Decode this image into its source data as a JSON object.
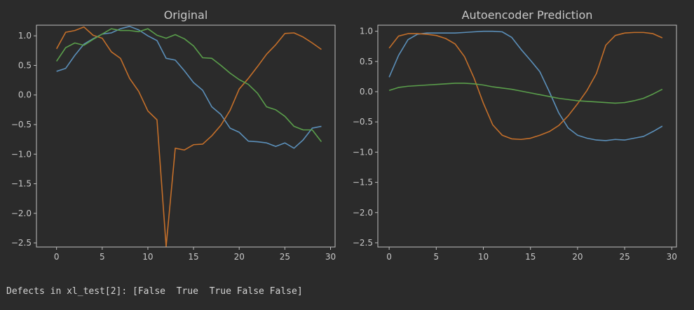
{
  "colors": {
    "background": "#2b2b2b",
    "axis": "#bfbfbf",
    "text": "#c8c8c8",
    "series": [
      "#5b8fb9",
      "#c46f2a",
      "#5a9e4b"
    ]
  },
  "chart_data": [
    {
      "type": "line",
      "title": "Original",
      "xlabel": "",
      "ylabel": "",
      "xlim": [
        -2.2,
        30.5
      ],
      "ylim": [
        -2.57,
        1.18
      ],
      "xticks": [
        0,
        5,
        10,
        15,
        20,
        25,
        30
      ],
      "yticks": [
        1.0,
        0.5,
        0.0,
        -0.5,
        -1.0,
        -1.5,
        -2.0,
        -2.5
      ],
      "grid": false,
      "x": [
        0,
        1,
        2,
        3,
        4,
        5,
        6,
        7,
        8,
        9,
        10,
        11,
        12,
        13,
        14,
        15,
        16,
        17,
        18,
        19,
        20,
        21,
        22,
        23,
        24,
        25,
        26,
        27,
        28,
        29
      ],
      "series": [
        {
          "values": [
            0.4,
            0.45,
            0.67,
            0.86,
            0.95,
            1.03,
            1.05,
            1.12,
            1.16,
            1.1,
            1.0,
            0.92,
            0.62,
            0.59,
            0.41,
            0.21,
            0.08,
            -0.2,
            -0.33,
            -0.56,
            -0.63,
            -0.78,
            -0.79,
            -0.81,
            -0.87,
            -0.81,
            -0.9,
            -0.76,
            -0.56,
            -0.53
          ]
        },
        {
          "values": [
            0.78,
            1.06,
            1.09,
            1.15,
            1.01,
            0.96,
            0.73,
            0.62,
            0.28,
            0.06,
            -0.27,
            -0.42,
            -2.56,
            -0.9,
            -0.93,
            -0.84,
            -0.83,
            -0.69,
            -0.51,
            -0.26,
            0.1,
            0.28,
            0.48,
            0.69,
            0.85,
            1.04,
            1.05,
            0.98,
            0.88,
            0.77
          ]
        },
        {
          "values": [
            0.57,
            0.8,
            0.88,
            0.84,
            0.94,
            1.03,
            1.12,
            1.09,
            1.09,
            1.07,
            1.12,
            1.01,
            0.96,
            1.02,
            0.95,
            0.83,
            0.63,
            0.62,
            0.5,
            0.37,
            0.26,
            0.18,
            0.03,
            -0.2,
            -0.25,
            -0.36,
            -0.53,
            -0.59,
            -0.59,
            -0.79
          ]
        }
      ]
    },
    {
      "type": "line",
      "title": "Autoencoder Prediction",
      "xlabel": "",
      "ylabel": "",
      "xlim": [
        -1.2,
        30.5
      ],
      "ylim": [
        -2.57,
        1.1
      ],
      "xticks": [
        0,
        5,
        10,
        15,
        20,
        25,
        30
      ],
      "yticks": [
        1.0,
        0.5,
        0.0,
        -0.5,
        -1.0,
        -1.5,
        -2.0,
        -2.5
      ],
      "grid": false,
      "x": [
        0,
        1,
        2,
        3,
        4,
        5,
        6,
        7,
        8,
        9,
        10,
        11,
        12,
        13,
        14,
        15,
        16,
        17,
        18,
        19,
        20,
        21,
        22,
        23,
        24,
        25,
        26,
        27,
        28,
        29
      ],
      "series": [
        {
          "values": [
            0.24,
            0.6,
            0.86,
            0.95,
            0.97,
            0.97,
            0.97,
            0.97,
            0.98,
            0.99,
            1.0,
            1.0,
            0.99,
            0.9,
            0.7,
            0.52,
            0.33,
            0.0,
            -0.35,
            -0.6,
            -0.72,
            -0.77,
            -0.8,
            -0.81,
            -0.79,
            -0.8,
            -0.77,
            -0.74,
            -0.66,
            -0.57
          ]
        },
        {
          "values": [
            0.72,
            0.92,
            0.96,
            0.96,
            0.95,
            0.93,
            0.88,
            0.79,
            0.58,
            0.23,
            -0.19,
            -0.55,
            -0.72,
            -0.78,
            -0.79,
            -0.77,
            -0.72,
            -0.66,
            -0.56,
            -0.4,
            -0.2,
            0.02,
            0.3,
            0.77,
            0.93,
            0.97,
            0.98,
            0.98,
            0.96,
            0.89
          ]
        },
        {
          "values": [
            0.02,
            0.07,
            0.09,
            0.1,
            0.11,
            0.12,
            0.13,
            0.14,
            0.14,
            0.13,
            0.11,
            0.08,
            0.06,
            0.04,
            0.01,
            -0.02,
            -0.05,
            -0.08,
            -0.11,
            -0.13,
            -0.15,
            -0.16,
            -0.17,
            -0.18,
            -0.19,
            -0.18,
            -0.15,
            -0.11,
            -0.04,
            0.04
          ]
        }
      ]
    }
  ],
  "console": {
    "line": "Defects in xl_test[2]: [False  True  True False False]"
  }
}
